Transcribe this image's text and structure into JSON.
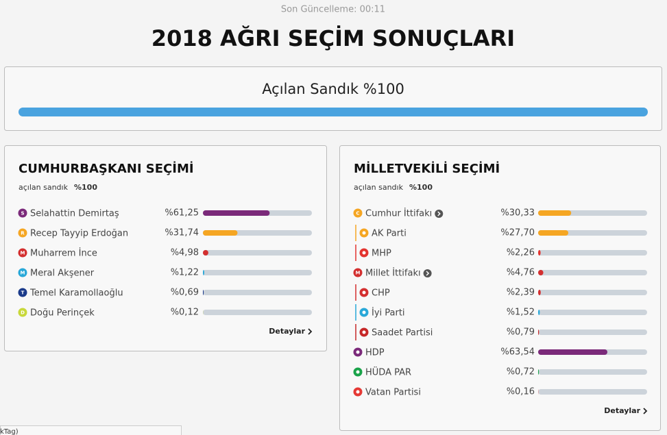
{
  "header": {
    "updated": "Son Güncelleme: 00:11",
    "title": "2018 AĞRI SEÇİM SONUÇLARI"
  },
  "opened": {
    "label": "Açılan Sandık %100",
    "value": 100,
    "color": "#4aa3df"
  },
  "bar_range": [
    0,
    100
  ],
  "cards": [
    {
      "title": "CUMHURBAŞKANI SEÇİMİ",
      "opened_label": "açılan sandık",
      "opened_value": "%100",
      "details": "Detaylar",
      "rows": [
        {
          "name": "Selahattin Demirtaş",
          "badge": "S",
          "color": "#7b2a7a",
          "value": 61.25,
          "label": "%61,25"
        },
        {
          "name": "Recep Tayyip Erdoğan",
          "badge": "R",
          "color": "#f5a623",
          "value": 31.74,
          "label": "%31,74"
        },
        {
          "name": "Muharrem İnce",
          "badge": "M",
          "color": "#d32f2f",
          "value": 4.98,
          "label": "%4,98"
        },
        {
          "name": "Meral Akşener",
          "badge": "M",
          "color": "#29a8d8",
          "value": 1.22,
          "label": "%1,22"
        },
        {
          "name": "Temel Karamollaoğlu",
          "badge": "T",
          "color": "#1a3a8a",
          "value": 0.69,
          "label": "%0,69"
        },
        {
          "name": "Doğu Perinçek",
          "badge": "D",
          "color": "#c8d83a",
          "value": 0.12,
          "label": "%0,12"
        }
      ]
    },
    {
      "title": "MİLLETVEKİLİ SEÇİMİ",
      "opened_label": "açılan sandık",
      "opened_value": "%100",
      "details": "Detaylar",
      "rows": [
        {
          "name": "Cumhur İttifakı",
          "badge": "C",
          "color": "#f5a623",
          "value": 30.33,
          "label": "%30,33",
          "group": true
        },
        {
          "name": "AK Parti",
          "color": "#f5a623",
          "value": 27.7,
          "label": "%27,70",
          "child": true
        },
        {
          "name": "MHP",
          "color": "#e3342f",
          "value": 2.26,
          "label": "%2,26",
          "child": true
        },
        {
          "name": "Millet İttifakı",
          "badge": "M",
          "color": "#d32f2f",
          "value": 4.76,
          "label": "%4,76",
          "group": true
        },
        {
          "name": "CHP",
          "color": "#d32f2f",
          "value": 2.39,
          "label": "%2,39",
          "child": true
        },
        {
          "name": "İyi Parti",
          "color": "#29a8d8",
          "value": 1.52,
          "label": "%1,52",
          "child": true
        },
        {
          "name": "Saadet Partisi",
          "color": "#c62828",
          "value": 0.79,
          "label": "%0,79",
          "child": true
        },
        {
          "name": "HDP",
          "color": "#7b2a7a",
          "value": 63.54,
          "label": "%63,54"
        },
        {
          "name": "HÜDA PAR",
          "color": "#1aa34a",
          "value": 0.72,
          "label": "%0,72"
        },
        {
          "name": "Vatan Partisi",
          "color": "#e53935",
          "value": 0.16,
          "label": "%0,16"
        }
      ]
    }
  ],
  "footer": "kTag)"
}
